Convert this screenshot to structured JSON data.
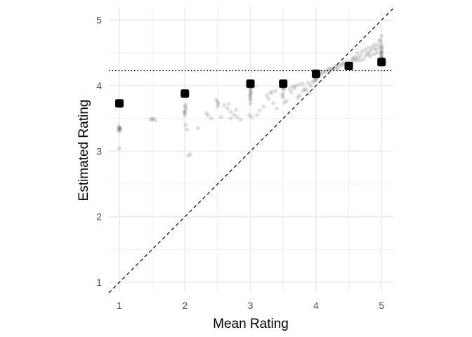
{
  "chart_data": {
    "type": "scatter",
    "title": "",
    "xlabel": "Mean Rating",
    "ylabel": "Estimated Rating",
    "xlim": [
      0.84,
      5.18
    ],
    "ylim": [
      0.85,
      5.2
    ],
    "x_ticks": [
      1,
      2,
      3,
      4,
      5
    ],
    "y_ticks": [
      1,
      2,
      3,
      4,
      5
    ],
    "x_tick_labels": [
      "1",
      "2",
      "3",
      "4",
      "5"
    ],
    "y_tick_labels": [
      "1",
      "2",
      "3",
      "4",
      "5"
    ],
    "grid": true,
    "background": "#ffffff",
    "grid_color": "#ebebeb",
    "point_color": "#000000",
    "point_alpha": 0.12,
    "identity_line": {
      "style": "dashed",
      "slope": 1,
      "intercept": 0
    },
    "reference_line": {
      "style": "dotted",
      "y": 4.23
    },
    "points": [
      [
        1,
        3.34
      ],
      [
        1,
        3.36
      ],
      [
        1.02,
        3.33
      ],
      [
        1,
        3.3
      ],
      [
        1,
        3.04
      ],
      [
        0.99,
        3.38
      ],
      [
        1.01,
        3.35
      ],
      [
        0.98,
        3.32
      ],
      [
        1.5,
        3.48
      ],
      [
        1.52,
        3.5
      ],
      [
        1.55,
        3.47
      ],
      [
        1.48,
        3.49
      ],
      [
        2,
        3.62
      ],
      [
        2,
        3.58
      ],
      [
        2,
        3.55
      ],
      [
        2.01,
        3.4
      ],
      [
        2.03,
        3.33
      ],
      [
        2.02,
        3.65
      ],
      [
        1.99,
        3.6
      ],
      [
        2.05,
        2.93
      ],
      [
        2.08,
        2.95
      ],
      [
        2,
        3.68
      ],
      [
        2.01,
        3.71
      ],
      [
        2.2,
        3.35
      ],
      [
        2.35,
        3.55
      ],
      [
        2.33,
        3.58
      ],
      [
        2.4,
        3.5
      ],
      [
        2.5,
        3.68
      ],
      [
        2.5,
        3.75
      ],
      [
        2.51,
        3.72
      ],
      [
        2.55,
        3.52
      ],
      [
        2.48,
        3.78
      ],
      [
        2.6,
        3.7
      ],
      [
        2.65,
        3.65
      ],
      [
        2.7,
        3.6
      ],
      [
        2.75,
        3.55
      ],
      [
        2.8,
        3.52
      ],
      [
        2.7,
        3.5
      ],
      [
        2.85,
        3.48
      ],
      [
        2.67,
        3.72
      ],
      [
        2.78,
        3.63
      ],
      [
        3,
        3.92
      ],
      [
        3,
        3.88
      ],
      [
        3,
        3.85
      ],
      [
        3,
        3.8
      ],
      [
        3,
        3.78
      ],
      [
        3,
        3.95
      ],
      [
        3,
        3.73
      ],
      [
        3.02,
        3.52
      ],
      [
        2.98,
        3.55
      ],
      [
        3,
        3.97
      ],
      [
        3.01,
        3.9
      ],
      [
        2.99,
        3.84
      ],
      [
        3.1,
        3.55
      ],
      [
        3.14,
        3.62
      ],
      [
        3.2,
        3.68
      ],
      [
        3.25,
        3.85
      ],
      [
        3.3,
        3.89
      ],
      [
        3.33,
        3.9
      ],
      [
        3.35,
        3.73
      ],
      [
        3.4,
        3.65
      ],
      [
        3.38,
        3.92
      ],
      [
        3.28,
        3.8
      ],
      [
        3.5,
        3.98
      ],
      [
        3.5,
        4.02
      ],
      [
        3.5,
        3.94
      ],
      [
        3.5,
        3.88
      ],
      [
        3.5,
        3.82
      ],
      [
        3.52,
        3.74
      ],
      [
        3.55,
        3.77
      ],
      [
        3.48,
        3.85
      ],
      [
        3.51,
        3.96
      ],
      [
        3.6,
        3.95
      ],
      [
        3.62,
        3.9
      ],
      [
        3.67,
        3.96
      ],
      [
        3.7,
        4.0
      ],
      [
        3.75,
        4.02
      ],
      [
        3.75,
        3.85
      ],
      [
        3.8,
        3.92
      ],
      [
        3.8,
        4.03
      ],
      [
        3.83,
        3.95
      ],
      [
        3.85,
        3.93
      ],
      [
        3.88,
        4.04
      ],
      [
        3.9,
        3.88
      ],
      [
        3.92,
        4.0
      ],
      [
        3.95,
        4.05
      ],
      [
        3.97,
        4.08
      ],
      [
        3.72,
        3.82
      ],
      [
        3.65,
        3.99
      ],
      [
        4,
        4.2
      ],
      [
        4,
        4.18
      ],
      [
        4,
        4.15
      ],
      [
        4,
        4.12
      ],
      [
        4,
        4.1
      ],
      [
        4,
        4.22
      ],
      [
        4,
        4.08
      ],
      [
        4.02,
        4.14
      ],
      [
        3.99,
        4.17
      ],
      [
        4.05,
        4.18
      ],
      [
        4.08,
        4.17
      ],
      [
        4.1,
        4.2
      ],
      [
        4.12,
        4.22
      ],
      [
        4.15,
        4.21
      ],
      [
        4.18,
        4.25
      ],
      [
        4.2,
        4.23
      ],
      [
        4.22,
        4.27
      ],
      [
        4.25,
        4.26
      ],
      [
        4.27,
        4.24
      ],
      [
        4.3,
        4.3
      ],
      [
        4.32,
        4.28
      ],
      [
        4.33,
        4.25
      ],
      [
        4.35,
        4.32
      ],
      [
        4.38,
        4.3
      ],
      [
        4.4,
        4.33
      ],
      [
        4.42,
        4.35
      ],
      [
        4.45,
        4.31
      ],
      [
        4.47,
        4.37
      ],
      [
        4.5,
        4.3
      ],
      [
        4.5,
        4.32
      ],
      [
        4.5,
        4.35
      ],
      [
        4.5,
        4.28
      ],
      [
        4.52,
        4.33
      ],
      [
        4.55,
        4.36
      ],
      [
        4.55,
        4.4
      ],
      [
        4.57,
        4.42
      ],
      [
        4.6,
        4.38
      ],
      [
        4.6,
        4.44
      ],
      [
        4.62,
        4.4
      ],
      [
        4.63,
        4.5
      ],
      [
        4.65,
        4.43
      ],
      [
        4.67,
        4.38
      ],
      [
        4.68,
        4.46
      ],
      [
        4.7,
        4.52
      ],
      [
        4.72,
        4.4
      ],
      [
        4.75,
        4.55
      ],
      [
        4.75,
        4.45
      ],
      [
        4.78,
        4.5
      ],
      [
        4.8,
        4.47
      ],
      [
        4.8,
        4.58
      ],
      [
        4.82,
        4.52
      ],
      [
        4.83,
        4.45
      ],
      [
        4.85,
        4.55
      ],
      [
        4.86,
        4.6
      ],
      [
        4.88,
        4.48
      ],
      [
        4.9,
        4.57
      ],
      [
        4.9,
        4.63
      ],
      [
        4.92,
        4.55
      ],
      [
        4.93,
        4.5
      ],
      [
        4.95,
        4.62
      ],
      [
        4.97,
        4.68
      ],
      [
        4.97,
        4.58
      ],
      [
        4.98,
        4.7
      ],
      [
        5,
        4.35
      ],
      [
        5,
        4.38
      ],
      [
        5,
        4.4
      ],
      [
        5,
        4.42
      ],
      [
        5,
        4.45
      ],
      [
        5,
        4.48
      ],
      [
        5,
        4.5
      ],
      [
        5,
        4.52
      ],
      [
        5,
        4.55
      ],
      [
        5,
        4.6
      ],
      [
        5,
        4.65
      ],
      [
        5,
        4.76
      ],
      [
        5,
        4.33
      ],
      [
        5,
        4.36
      ],
      [
        5.01,
        4.58
      ],
      [
        4.99,
        4.44
      ],
      [
        5.01,
        4.41
      ],
      [
        4.99,
        4.51
      ]
    ],
    "highlight_points": [
      [
        1,
        3.73
      ],
      [
        2,
        3.88
      ],
      [
        3,
        4.03
      ],
      [
        3.5,
        4.03
      ],
      [
        4,
        4.18
      ],
      [
        4.5,
        4.3
      ],
      [
        5,
        4.36
      ]
    ]
  }
}
